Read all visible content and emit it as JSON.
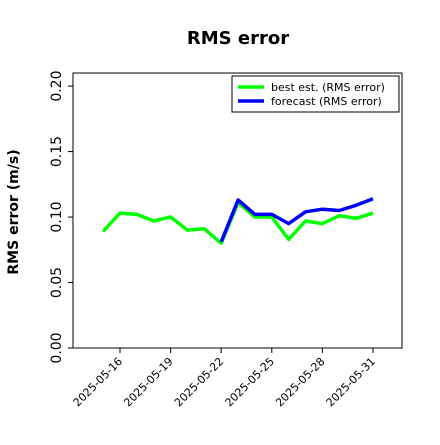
{
  "chart_data": {
    "type": "line",
    "title": "RMS error",
    "xlabel": "",
    "ylabel": "RMS error (m/s)",
    "ylim": [
      0.0,
      0.21
    ],
    "yticks": [
      "0.00",
      "0.05",
      "0.10",
      "0.15",
      "0.20"
    ],
    "x": [
      "2025-05-15",
      "2025-05-16",
      "2025-05-17",
      "2025-05-18",
      "2025-05-19",
      "2025-05-20",
      "2025-05-21",
      "2025-05-22",
      "2025-05-23",
      "2025-05-24",
      "2025-05-25",
      "2025-05-26",
      "2025-05-27",
      "2025-05-28",
      "2025-05-29",
      "2025-05-30",
      "2025-05-31"
    ],
    "xtick_labels": [
      {
        "label": "2025-05-16",
        "color": "#000000"
      },
      {
        "label": "2025-05-19",
        "color": "#000000"
      },
      {
        "label": "2025-05-22",
        "color": "#2ca02c"
      },
      {
        "label": "2025-05-25",
        "color": "#000000"
      },
      {
        "label": "2025-05-28",
        "color": "#000000"
      },
      {
        "label": "2025-05-31",
        "color": "#000000"
      }
    ],
    "series": [
      {
        "name": "best est. (RMS error)",
        "color": "#00ff00",
        "values": [
          0.089,
          0.103,
          0.102,
          0.097,
          0.1,
          0.09,
          0.091,
          0.08,
          0.111,
          0.1,
          0.1,
          0.083,
          0.097,
          0.095,
          0.101,
          0.099,
          0.103
        ]
      },
      {
        "name": "forecast (RMS error)",
        "color": "#0000ff",
        "values": [
          null,
          null,
          null,
          null,
          null,
          null,
          null,
          0.081,
          0.113,
          0.102,
          0.102,
          0.095,
          0.104,
          0.106,
          0.105,
          0.109,
          0.114
        ]
      }
    ],
    "legend_position": "top-right",
    "grid": false
  }
}
